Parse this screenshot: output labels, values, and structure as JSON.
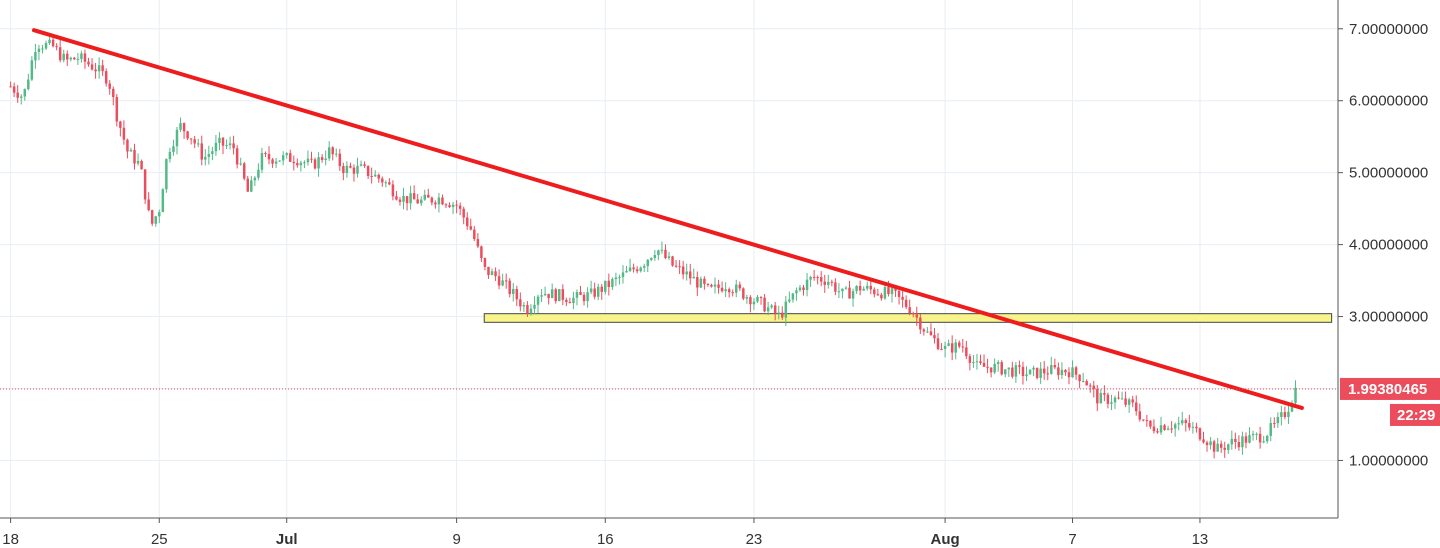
{
  "chart_data": {
    "type": "candlestick",
    "title": "",
    "xlabel": "",
    "ylabel": "",
    "ylim": [
      0.2,
      7.4
    ],
    "y_ticks": [
      {
        "value": 7,
        "label": "7.00000000"
      },
      {
        "value": 6,
        "label": "6.00000000"
      },
      {
        "value": 5,
        "label": "5.00000000"
      },
      {
        "value": 4,
        "label": "4.00000000"
      },
      {
        "value": 3,
        "label": "3.00000000"
      },
      {
        "value": 1,
        "label": "1.00000000"
      }
    ],
    "x_ticks": [
      {
        "value": 0,
        "label": "18",
        "bold": false
      },
      {
        "value": 7,
        "label": "25",
        "bold": false
      },
      {
        "value": 13,
        "label": "Jul",
        "bold": true
      },
      {
        "value": 21,
        "label": "9",
        "bold": false
      },
      {
        "value": 28,
        "label": "16",
        "bold": false
      },
      {
        "value": 35,
        "label": "23",
        "bold": false
      },
      {
        "value": 44,
        "label": "Aug",
        "bold": true
      },
      {
        "value": 50,
        "label": "7",
        "bold": false
      },
      {
        "value": 56,
        "label": "13",
        "bold": false
      }
    ],
    "xlim": [
      -0.5,
      62.5
    ],
    "grid": true,
    "last_price": {
      "value": 1.9938,
      "label": "1.99380465",
      "timer": "22:29"
    },
    "trendline": {
      "x1": 1.1,
      "y1": 6.98,
      "x2": 60.8,
      "y2": 1.73
    },
    "support_zone": {
      "x1": 22.3,
      "x2": 62.2,
      "y_low": 2.92,
      "y_high": 3.04
    },
    "colors": {
      "up": "#53b987",
      "down": "#eb4d5c",
      "trendline": "#ee1c1c",
      "zone_fill": "#f8f48a",
      "zone_stroke": "#444444",
      "price_line": "#eb4d5c",
      "badge": "#eb4d5c",
      "grid": "#e8eef4"
    },
    "anchors": [
      [
        0,
        6.2
      ],
      [
        0.6,
        6.05
      ],
      [
        1.2,
        6.8
      ],
      [
        2,
        6.75
      ],
      [
        2.6,
        6.55
      ],
      [
        3.2,
        6.6
      ],
      [
        4,
        6.45
      ],
      [
        4.6,
        6.3
      ],
      [
        5,
        5.8
      ],
      [
        5.5,
        5.3
      ],
      [
        6.1,
        5.1
      ],
      [
        6.6,
        4.25
      ],
      [
        7,
        4.5
      ],
      [
        7.4,
        5.3
      ],
      [
        8,
        5.65
      ],
      [
        8.5,
        5.5
      ],
      [
        9.1,
        5.2
      ],
      [
        9.8,
        5.4
      ],
      [
        10.5,
        5.35
      ],
      [
        11.2,
        4.7
      ],
      [
        11.8,
        5.2
      ],
      [
        12.6,
        5.2
      ],
      [
        13.4,
        5.2
      ],
      [
        14.2,
        5.1
      ],
      [
        15,
        5.3
      ],
      [
        15.7,
        5.05
      ],
      [
        16.5,
        5.05
      ],
      [
        17.5,
        4.9
      ],
      [
        18.4,
        4.65
      ],
      [
        19.3,
        4.6
      ],
      [
        20.2,
        4.65
      ],
      [
        21,
        4.55
      ],
      [
        21.7,
        4.2
      ],
      [
        22.3,
        3.65
      ],
      [
        22.9,
        3.55
      ],
      [
        23.7,
        3.3
      ],
      [
        24.3,
        3.1
      ],
      [
        24.9,
        3.35
      ],
      [
        25.7,
        3.3
      ],
      [
        26.5,
        3.25
      ],
      [
        27.3,
        3.3
      ],
      [
        28.2,
        3.45
      ],
      [
        29,
        3.6
      ],
      [
        29.8,
        3.75
      ],
      [
        30.4,
        3.95
      ],
      [
        31.2,
        3.7
      ],
      [
        32,
        3.55
      ],
      [
        32.9,
        3.35
      ],
      [
        33.7,
        3.45
      ],
      [
        34.6,
        3.3
      ],
      [
        35.5,
        3.15
      ],
      [
        36.2,
        3.0
      ],
      [
        37,
        3.35
      ],
      [
        37.8,
        3.55
      ],
      [
        38.5,
        3.5
      ],
      [
        39.2,
        3.3
      ],
      [
        40,
        3.4
      ],
      [
        40.8,
        3.35
      ],
      [
        41.6,
        3.3
      ],
      [
        42.4,
        3.1
      ],
      [
        43.2,
        2.75
      ],
      [
        44,
        2.55
      ],
      [
        44.8,
        2.6
      ],
      [
        45.5,
        2.3
      ],
      [
        46.2,
        2.3
      ],
      [
        47.1,
        2.25
      ],
      [
        48,
        2.2
      ],
      [
        48.9,
        2.25
      ],
      [
        49.8,
        2.25
      ],
      [
        50.5,
        2.15
      ],
      [
        51.2,
        1.85
      ],
      [
        52,
        1.85
      ],
      [
        52.9,
        1.75
      ],
      [
        53.6,
        1.45
      ],
      [
        54.4,
        1.5
      ],
      [
        55.3,
        1.5
      ],
      [
        56.1,
        1.35
      ],
      [
        56.8,
        1.15
      ],
      [
        57.5,
        1.25
      ],
      [
        58.3,
        1.3
      ],
      [
        59,
        1.35
      ],
      [
        59.6,
        1.5
      ],
      [
        60.1,
        1.7
      ],
      [
        60.5,
        1.99
      ]
    ],
    "candles_per_day": 6,
    "noise_seed": 7
  }
}
